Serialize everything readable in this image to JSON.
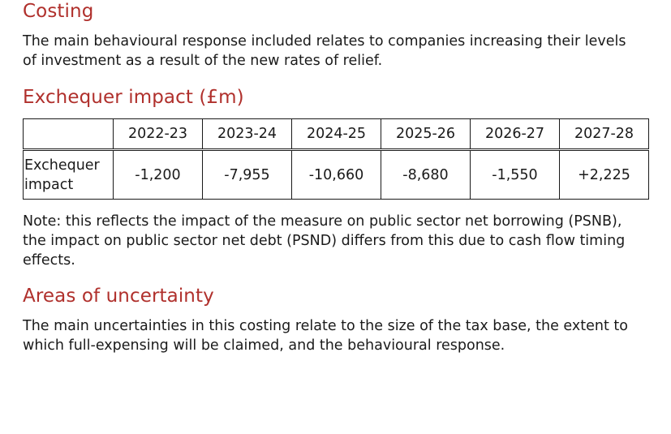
{
  "sections": {
    "costing": {
      "heading": "Costing",
      "text": "The main behavioural response included relates to companies increasing their levels of investment as a result of the new rates of relief."
    },
    "exchequer": {
      "heading": "Exchequer impact (£m)",
      "table": {
        "years": [
          "2022-23",
          "2023-24",
          "2024-25",
          "2025-26",
          "2026-27",
          "2027-28"
        ],
        "row_label": "Exchequer impact",
        "values": [
          "-1,200",
          "-7,955",
          "-10,660",
          "-8,680",
          "-1,550",
          "+2,225"
        ]
      },
      "note": "Note: this reflects the impact of the measure on public sector net borrowing (PSNB), the impact on public sector net debt (PSND) differs from this due to cash flow timing effects."
    },
    "uncertainty": {
      "heading": "Areas of uncertainty",
      "text": "The main uncertainties in this costing relate to the size of the tax base, the extent to which full-expensing will be claimed, and the behavioural response."
    }
  },
  "colors": {
    "heading": "#b0302c",
    "text": "#1a1a1a"
  }
}
